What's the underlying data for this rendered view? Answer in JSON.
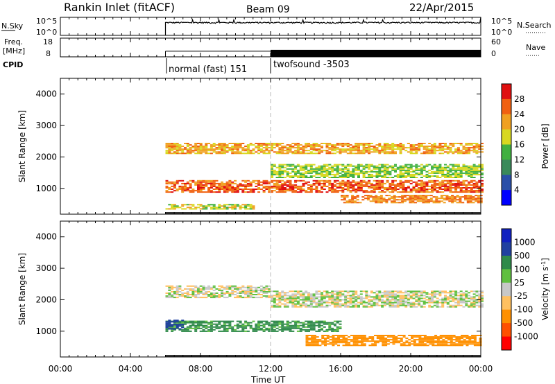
{
  "header": {
    "title": "Rankin Inlet (fitACF)",
    "beam": "Beam 09",
    "date": "22/Apr/2015"
  },
  "panels": {
    "nsky": {
      "label": "N.Sky",
      "ticks": [
        "10^5",
        "10^0"
      ],
      "right_ticks": [
        "10^5",
        "10^0"
      ],
      "right_label": "N.Search"
    },
    "freq": {
      "label_line1": "Freq.",
      "label_line2": "[MHz]",
      "ticks": [
        "18",
        "8"
      ],
      "right_ticks": [
        "60",
        "0"
      ],
      "right_label": "Nave"
    },
    "cpid": {
      "label": "CPID",
      "modes": [
        {
          "name": "normal (fast) 151"
        },
        {
          "name": "twofsound -3503"
        }
      ]
    }
  },
  "x_axis": {
    "ticks": [
      "00:00",
      "04:00",
      "08:00",
      "12:00",
      "16:00",
      "20:00",
      "00:00"
    ],
    "label": "Time UT"
  },
  "colors": {
    "power": [
      "#0000ff",
      "#2a4fa8",
      "#3a8a5a",
      "#40b040",
      "#d8d820",
      "#f0a020",
      "#f06010",
      "#e01010"
    ],
    "velocity": [
      "#ff0000",
      "#ff5000",
      "#ff9000",
      "#ffc060",
      "#c8c8c8",
      "#60c040",
      "#2f8a4a",
      "#2040a0",
      "#1020c0"
    ],
    "missing": "#ffffff"
  },
  "chart_data": [
    {
      "type": "line",
      "name": "N.Sky / N.Search",
      "x_range_hours": [
        0,
        24
      ],
      "y_scale": "log",
      "y_range": [
        1,
        100000
      ],
      "note_data_start_hour": 6,
      "series": [
        {
          "values_hours": [
            6.0,
            6.5,
            8,
            10,
            11.5,
            12,
            14,
            16,
            18,
            20,
            22,
            23.5,
            24
          ],
          "values": [
            3000,
            2500,
            2000,
            2500,
            3000,
            20000,
            2000,
            1500,
            2000,
            2500,
            3000,
            3500,
            100000
          ]
        }
      ]
    },
    {
      "type": "line",
      "name": "Freq / Nave",
      "x_range_hours": [
        0,
        24
      ],
      "y_range": [
        8,
        18
      ],
      "right_range": [
        0,
        60
      ],
      "series": [
        {
          "values_hours": [
            6,
            12,
            12,
            16,
            24
          ],
          "values": [
            11,
            11,
            11,
            11,
            11
          ]
        }
      ]
    },
    {
      "type": "heatmap",
      "title": "Power",
      "ylabel": "Slant Range [km]",
      "y_range": [
        180,
        4500
      ],
      "y_ticks": [
        1000,
        2000,
        3000,
        4000
      ],
      "x_range_hours": [
        0,
        24
      ],
      "colorbar": {
        "label": "Power [dB]",
        "ticks": [
          "4",
          "8",
          "12",
          "16",
          "20",
          "24",
          "28"
        ],
        "range": [
          0,
          30
        ]
      },
      "bands": [
        {
          "t_start": 6.0,
          "t_end": 24.0,
          "r_center": 1050,
          "r_width": 380,
          "value": 26
        },
        {
          "t_start": 6.0,
          "t_end": 24.0,
          "r_center": 2250,
          "r_width": 320,
          "value": 22
        },
        {
          "t_start": 6.0,
          "t_end": 11.0,
          "r_center": 400,
          "r_width": 150,
          "value": 18
        },
        {
          "t_start": 12.0,
          "t_end": 24.0,
          "r_center": 1550,
          "r_width": 450,
          "value": 16
        },
        {
          "t_start": 16.0,
          "t_end": 24.0,
          "r_center": 650,
          "r_width": 250,
          "value": 24
        }
      ]
    },
    {
      "type": "heatmap",
      "title": "Velocity",
      "ylabel": "Slant Range [km]",
      "y_range": [
        180,
        4500
      ],
      "y_ticks": [
        1000,
        2000,
        3000,
        4000
      ],
      "x_range_hours": [
        0,
        24
      ],
      "colorbar": {
        "label": "Velocity [m s^-1]",
        "ticks": [
          "1000",
          "500",
          "100",
          "25",
          "-25",
          "-100",
          "-500",
          "-1000"
        ]
      },
      "bands": [
        {
          "t_start": 6.0,
          "t_end": 12.0,
          "r_center": 2250,
          "r_width": 400,
          "value": 0
        },
        {
          "t_start": 12.0,
          "t_end": 24.0,
          "r_center": 2000,
          "r_width": 500,
          "value": 0
        },
        {
          "t_start": 6.0,
          "t_end": 16.0,
          "r_center": 1150,
          "r_width": 350,
          "value": 150
        },
        {
          "t_start": 14.0,
          "t_end": 24.0,
          "r_center": 700,
          "r_width": 350,
          "value": -250
        },
        {
          "t_start": 6.0,
          "t_end": 7.0,
          "r_center": 1200,
          "r_width": 300,
          "value": 700
        }
      ]
    }
  ]
}
